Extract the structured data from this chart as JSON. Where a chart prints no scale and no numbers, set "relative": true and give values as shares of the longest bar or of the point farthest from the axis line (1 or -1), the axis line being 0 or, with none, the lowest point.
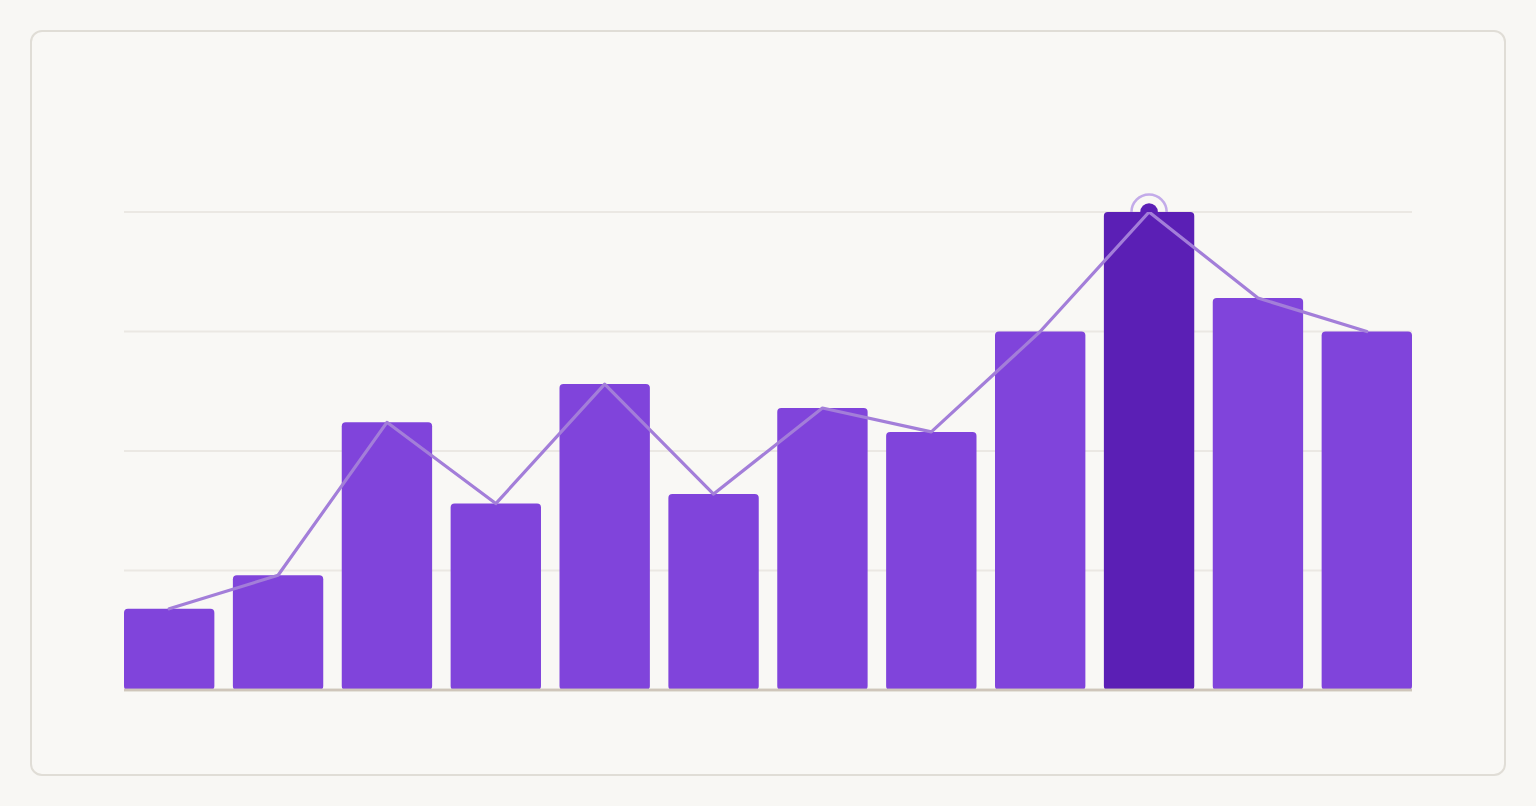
{
  "chart_data": [
    {
      "type": "bar",
      "relative": true,
      "grid": "y",
      "categories": [
        null,
        null,
        null,
        null,
        null,
        null,
        null,
        null,
        null,
        null,
        null,
        null
      ],
      "values": [
        0.17,
        0.24,
        0.56,
        0.39,
        0.64,
        0.41,
        0.59,
        0.54,
        0.75,
        1,
        0.82,
        0.75
      ],
      "colors": [
        "#8044db",
        "#8044db",
        "#8044db",
        "#8044db",
        "#8044db",
        "#8044db",
        "#8044db",
        "#8044db",
        "#8044db",
        "#5b1fb5",
        "#8044db",
        "#8044db"
      ]
    },
    {
      "type": "line",
      "relative": true,
      "marker": "none",
      "line_style": "solid",
      "categories": [
        null,
        null,
        null,
        null,
        null,
        null,
        null,
        null,
        null,
        null,
        null,
        null
      ],
      "values": [
        0.17,
        0.24,
        0.56,
        0.39,
        0.64,
        0.41,
        0.59,
        0.54,
        0.75,
        1,
        0.82,
        0.75
      ],
      "color": "#a37ed9"
    }
  ]
}
